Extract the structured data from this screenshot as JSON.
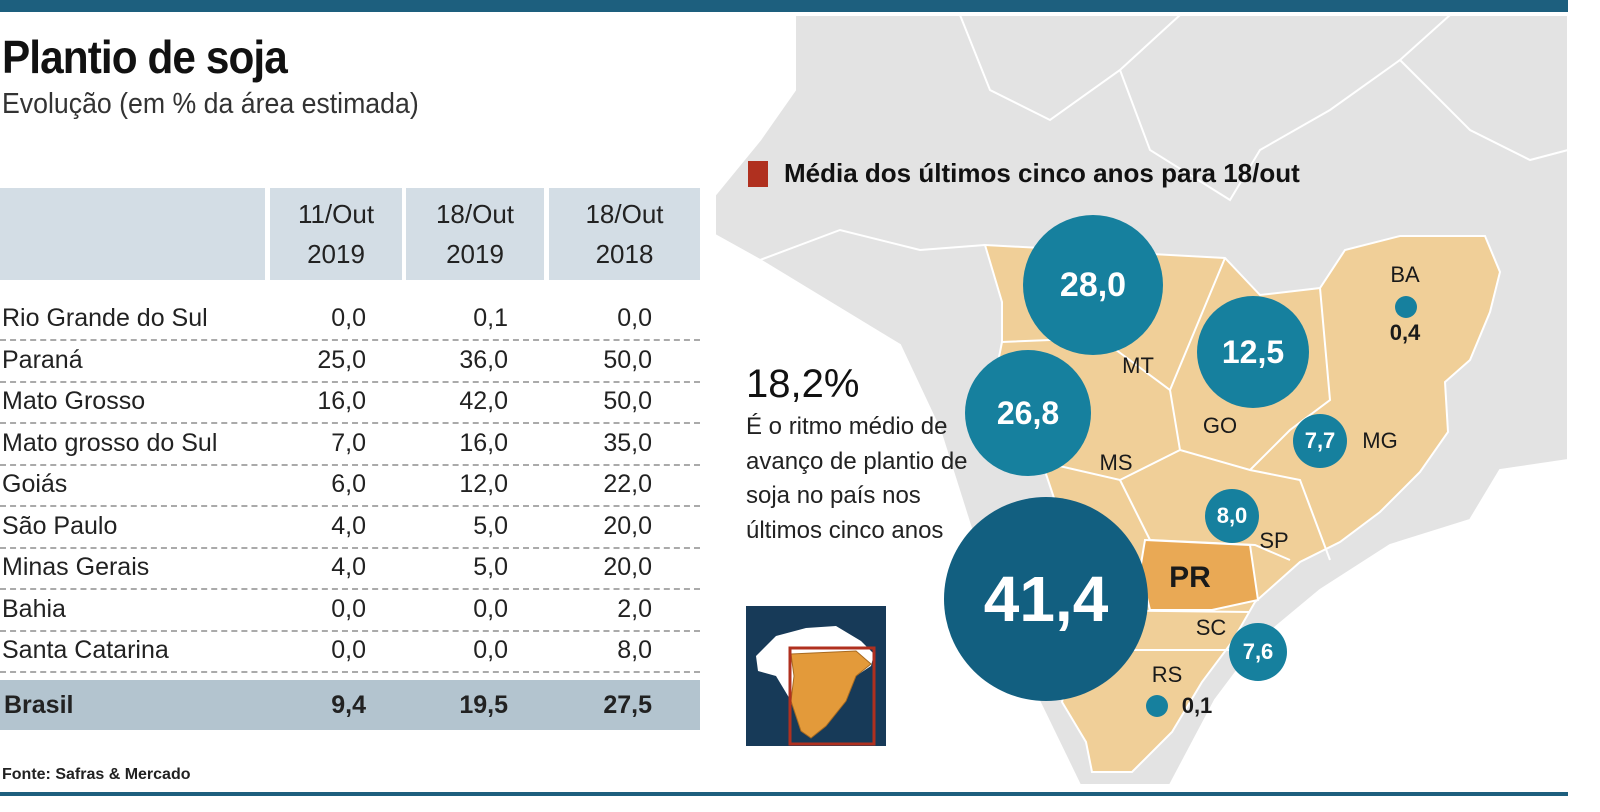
{
  "header": {
    "title": "Plantio de soja",
    "subtitle": "Evolução (em % da área estimada)"
  },
  "chart_data": [
    {
      "type": "table",
      "columns": [
        {
          "line1": "11/Out",
          "line2": "2019"
        },
        {
          "line1": "18/Out",
          "line2": "2019"
        },
        {
          "line1": "18/Out",
          "line2": "2018"
        }
      ],
      "rows": [
        {
          "label": "Rio Grande do Sul",
          "values": [
            "0,0",
            "0,1",
            "0,0"
          ]
        },
        {
          "label": "Paraná",
          "values": [
            "25,0",
            "36,0",
            "50,0"
          ]
        },
        {
          "label": "Mato Grosso",
          "values": [
            "16,0",
            "42,0",
            "50,0"
          ]
        },
        {
          "label": "Mato grosso do Sul",
          "values": [
            "7,0",
            "16,0",
            "35,0"
          ]
        },
        {
          "label": "Goiás",
          "values": [
            "6,0",
            "12,0",
            "22,0"
          ]
        },
        {
          "label": "São Paulo",
          "values": [
            "4,0",
            "5,0",
            "20,0"
          ]
        },
        {
          "label": "Minas Gerais",
          "values": [
            "4,0",
            "5,0",
            "20,0"
          ]
        },
        {
          "label": "Bahia",
          "values": [
            "0,0",
            "0,0",
            "2,0"
          ]
        },
        {
          "label": "Santa Catarina",
          "values": [
            "0,0",
            "0,0",
            "8,0"
          ]
        }
      ],
      "total": {
        "label": "Brasil",
        "values": [
          "9,4",
          "19,5",
          "27,5"
        ]
      }
    },
    {
      "type": "bubble-map",
      "legend": "Média dos últimos cinco anos para 18/out",
      "legend_color": "#b0301f",
      "bubble_color": "#16809e",
      "highlight_color": "#e9a955",
      "region_color": "#f0cf98",
      "states": [
        {
          "code": "MT",
          "value": "28,0"
        },
        {
          "code": "GO",
          "value": "12,5"
        },
        {
          "code": "MS",
          "value": "26,8"
        },
        {
          "code": "PR",
          "value": "41,4"
        },
        {
          "code": "MG",
          "value": "7,7"
        },
        {
          "code": "SP",
          "value": "8,0"
        },
        {
          "code": "SC",
          "value": "7,6"
        },
        {
          "code": "BA",
          "value": "0,4"
        },
        {
          "code": "RS",
          "value": "0,1"
        }
      ]
    }
  ],
  "highlight": {
    "value": "18,2%",
    "text": "É o ritmo médio de avanço de plantio de soja no país nos últimos cinco anos"
  },
  "source": "Fonte: Safras & Mercado"
}
